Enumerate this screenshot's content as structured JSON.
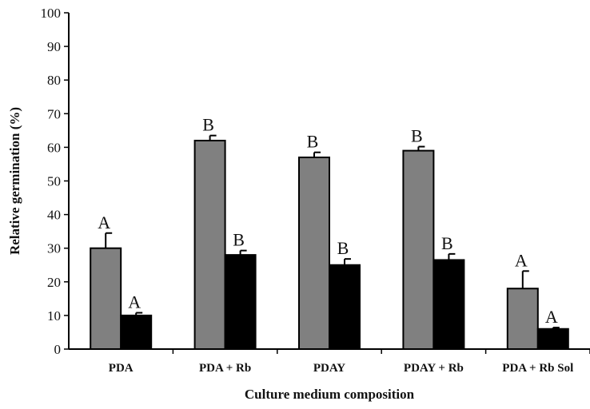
{
  "chart_data": {
    "type": "bar",
    "title": "",
    "xlabel": "Culture medium composition",
    "ylabel": "Relative germination (%)",
    "ylim": [
      0,
      100
    ],
    "yticks": [
      0,
      10,
      20,
      30,
      40,
      50,
      60,
      70,
      80,
      90,
      100
    ],
    "categories": [
      "PDA",
      "PDA + Rb",
      "PDAY",
      "PDAY + Rb",
      "PDA + Rb Sol"
    ],
    "series": [
      {
        "color": "#808080",
        "values": [
          30,
          62,
          57,
          59,
          18
        ],
        "errors": [
          4.5,
          1.5,
          1.5,
          1.2,
          5.2
        ],
        "letters": [
          "A",
          "B",
          "B",
          "B",
          "A"
        ]
      },
      {
        "color": "#000000",
        "values": [
          10,
          28,
          25,
          26.5,
          6
        ],
        "errors": [
          0.8,
          1.3,
          1.8,
          1.8,
          0.4
        ],
        "letters": [
          "A",
          "B",
          "B",
          "B",
          "A"
        ]
      }
    ],
    "grid": false,
    "legend": "none"
  }
}
